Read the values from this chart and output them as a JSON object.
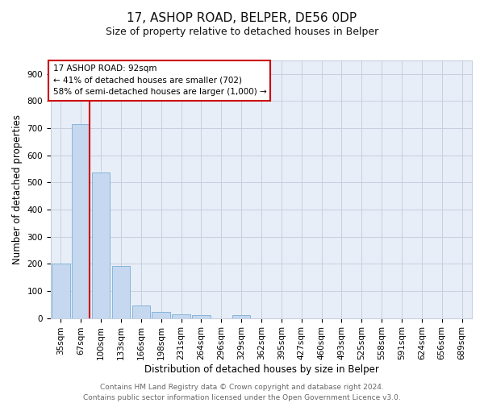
{
  "title_line1": "17, ASHOP ROAD, BELPER, DE56 0DP",
  "title_line2": "Size of property relative to detached houses in Belper",
  "xlabel": "Distribution of detached houses by size in Belper",
  "ylabel": "Number of detached properties",
  "bar_labels": [
    "35sqm",
    "67sqm",
    "100sqm",
    "133sqm",
    "166sqm",
    "198sqm",
    "231sqm",
    "264sqm",
    "296sqm",
    "329sqm",
    "362sqm",
    "395sqm",
    "427sqm",
    "460sqm",
    "493sqm",
    "525sqm",
    "558sqm",
    "591sqm",
    "624sqm",
    "656sqm",
    "689sqm"
  ],
  "bar_values": [
    200,
    714,
    537,
    192,
    46,
    22,
    14,
    11,
    0,
    10,
    0,
    0,
    0,
    0,
    0,
    0,
    0,
    0,
    0,
    0,
    0
  ],
  "bar_color": "#c5d8f0",
  "bar_edgecolor": "#7aadd4",
  "vline_color": "#cc0000",
  "ylim": [
    0,
    950
  ],
  "yticks": [
    0,
    100,
    200,
    300,
    400,
    500,
    600,
    700,
    800,
    900
  ],
  "annotation_title": "17 ASHOP ROAD: 92sqm",
  "annotation_line1": "← 41% of detached houses are smaller (702)",
  "annotation_line2": "58% of semi-detached houses are larger (1,000) →",
  "annotation_box_color": "#ffffff",
  "annotation_box_edgecolor": "#cc0000",
  "footer_line1": "Contains HM Land Registry data © Crown copyright and database right 2024.",
  "footer_line2": "Contains public sector information licensed under the Open Government Licence v3.0.",
  "plot_bg_color": "#e8eef8",
  "grid_color": "#c8d0e0",
  "title1_fontsize": 11,
  "title2_fontsize": 9,
  "ylabel_fontsize": 8.5,
  "xlabel_fontsize": 8.5,
  "tick_fontsize": 7.5,
  "annotation_fontsize": 7.5,
  "footer_fontsize": 6.5
}
